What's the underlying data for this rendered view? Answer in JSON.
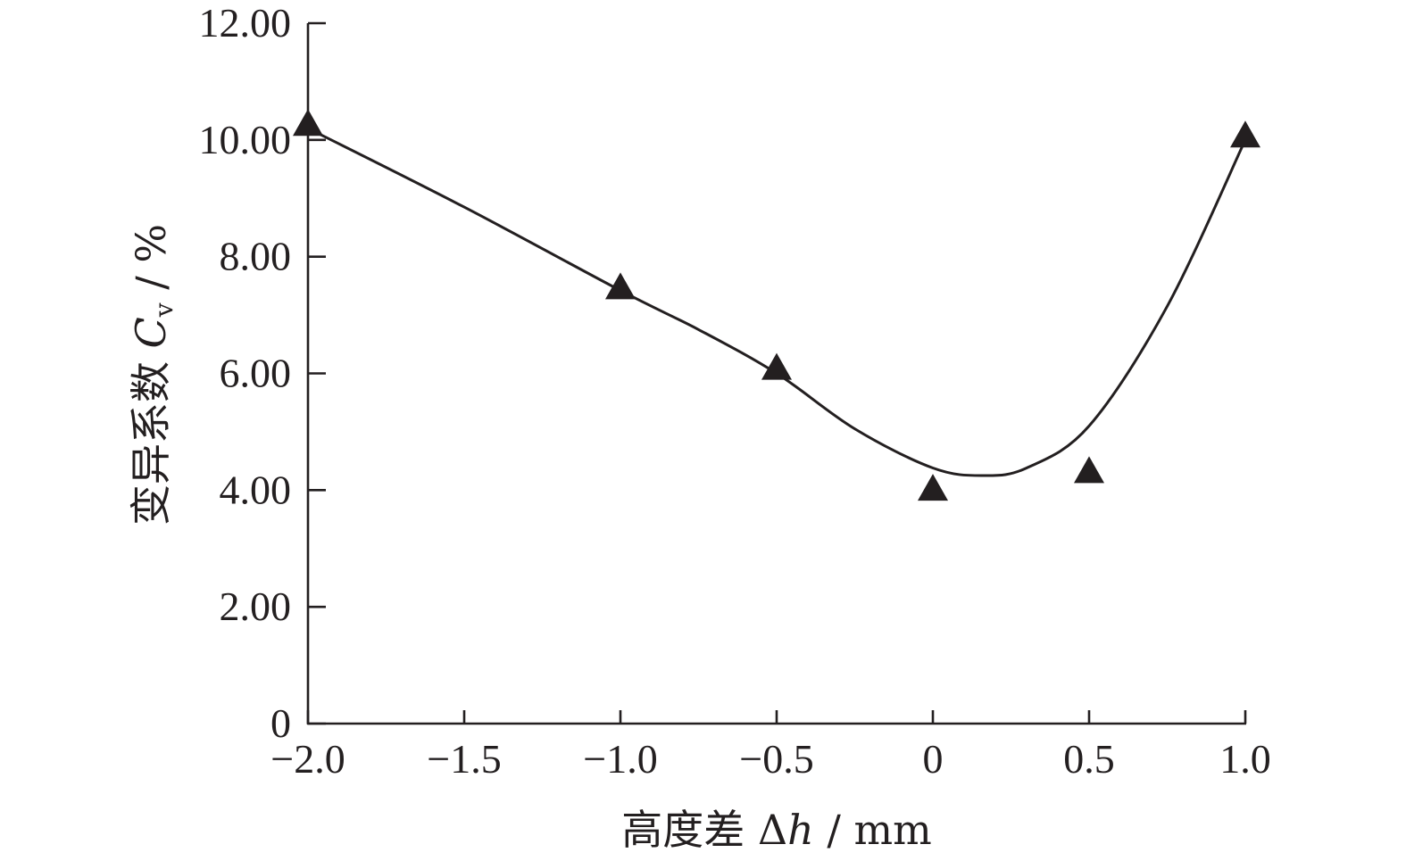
{
  "chart_data": {
    "type": "scatter",
    "x": [
      -2.0,
      -1.0,
      -0.5,
      0,
      0.5,
      1.0
    ],
    "y": [
      10.3,
      7.5,
      6.12,
      4.05,
      4.35,
      10.1
    ],
    "fit_curve": {
      "x": [
        -2.0,
        -1.5,
        -1.0,
        -0.75,
        -0.5,
        -0.25,
        0,
        0.16,
        0.3,
        0.5,
        0.75,
        1.0
      ],
      "y": [
        10.2,
        8.85,
        7.42,
        6.75,
        6.0,
        5.05,
        4.38,
        4.25,
        4.38,
        5.1,
        7.15,
        10.0
      ]
    },
    "marker": "filled-triangle",
    "xlabel": "高度差 Δh / mm",
    "ylabel": "变异系数 Cv / %",
    "xlim": [
      -2.0,
      1.0
    ],
    "ylim": [
      0,
      12
    ],
    "xticks": [
      -2.0,
      -1.5,
      -1.0,
      -0.5,
      0,
      0.5,
      1.0
    ],
    "xtick_labels": [
      "−2.0",
      "−1.5",
      "−1.0",
      "−0.5",
      "0",
      "0.5",
      "1.0"
    ],
    "yticks": [
      0,
      2,
      4,
      6,
      8,
      10,
      12
    ],
    "ytick_labels": [
      "0",
      "2.00",
      "4.00",
      "6.00",
      "8.00",
      "10.00",
      "12.00"
    ],
    "grid": false,
    "colors": {
      "ink": "#231f20",
      "background": "#ffffff"
    }
  },
  "axis_titles": {
    "x": {
      "prefix": "高度差 Δ",
      "var": "h",
      "suffix": " / mm"
    },
    "y": {
      "prefix": "变异系数 ",
      "var": "C",
      "sub": "v",
      "suffix": " / %"
    }
  }
}
